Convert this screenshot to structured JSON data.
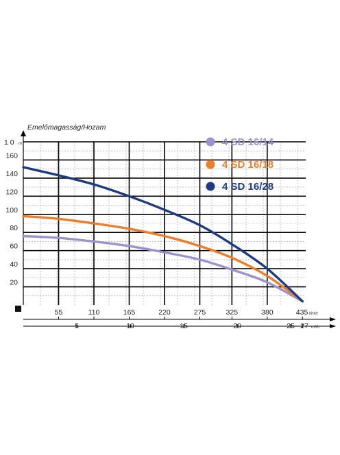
{
  "chart_data": {
    "type": "line",
    "title": "",
    "ylabel": "Emelőmagasság/Hozam",
    "y_unit": "m",
    "y_top_tick_label": "1 0",
    "x_unit": "l/min",
    "x2_unit": "m³/h",
    "ylim": [
      0,
      180
    ],
    "yticks": [
      20,
      40,
      60,
      80,
      100,
      120,
      140,
      160
    ],
    "xlim": [
      0,
      440
    ],
    "xticks": [
      55,
      110,
      165,
      220,
      275,
      325,
      380,
      435
    ],
    "x2ticks": [
      5,
      10,
      15,
      20,
      25
    ],
    "x2_last_label": "27",
    "grid": true,
    "legend_position": "top-right",
    "series": [
      {
        "name": "4 SD 16/14",
        "color": "#9a93cf",
        "x": [
          0,
          55,
          110,
          165,
          220,
          275,
          325,
          380,
          435
        ],
        "y": [
          76,
          74,
          70,
          65,
          58,
          50,
          39,
          25,
          4
        ]
      },
      {
        "name": "4 SD 16/18",
        "color": "#ea7e2a",
        "x": [
          0,
          55,
          110,
          165,
          220,
          275,
          325,
          380,
          435
        ],
        "y": [
          98,
          95,
          90,
          84,
          76,
          65,
          52,
          32,
          4
        ]
      },
      {
        "name": "4 SD 16/28",
        "color": "#1e3a80",
        "x": [
          0,
          55,
          110,
          165,
          220,
          275,
          325,
          380,
          435
        ],
        "y": [
          152,
          143,
          133,
          120,
          105,
          88,
          67,
          40,
          4
        ]
      }
    ]
  }
}
